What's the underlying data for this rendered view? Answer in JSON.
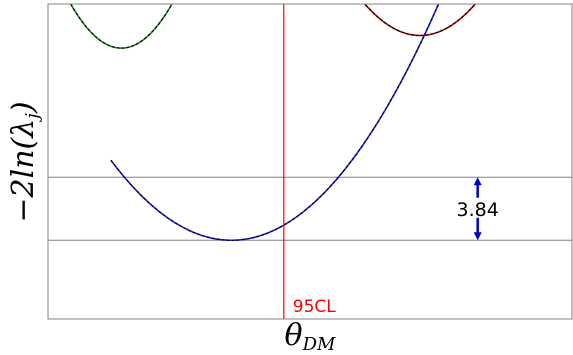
{
  "chart_data": {
    "type": "line",
    "xlabel": "θ_DM",
    "xlabel_main": "θ",
    "xlabel_sub": "DM",
    "ylabel": "−2ln(λ_j)",
    "ylabel_main": "−2ln(λ",
    "ylabel_sub": "j",
    "ylabel_close": ")",
    "xlim": [
      0,
      1
    ],
    "ylim": [
      0,
      10
    ],
    "grid": false,
    "reference_lines": {
      "y": [
        2.5,
        4.5
      ]
    },
    "vertical_line": {
      "x": 0.45,
      "label": "95CL",
      "color": "#ff0000"
    },
    "annotation": {
      "text": "3.84",
      "x": 0.82,
      "y_from": 2.5,
      "y_to": 4.5,
      "color": "#0000cc"
    },
    "series": [
      {
        "color": "#1e1ef0",
        "dash_color": "#000000",
        "xmin": 0.12,
        "x0": 0.35,
        "y0": 2.5,
        "k": 48.0
      },
      {
        "color": "#228b22",
        "dash_color": "#000000",
        "xmin": 0.03,
        "xmax": 0.24,
        "x0": 0.14,
        "y0": 8.6,
        "k": 150.0
      },
      {
        "color": "#b30000",
        "dash_color": "#000000",
        "xmin": 0.6,
        "xmax": 0.82,
        "x0": 0.71,
        "y0": 9.0,
        "k": 90.0
      }
    ]
  }
}
